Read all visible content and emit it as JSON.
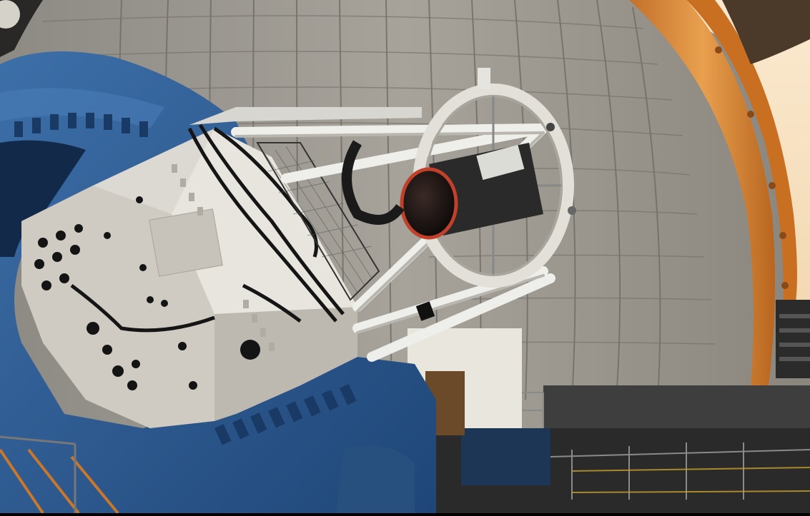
{
  "scene": {
    "subject": "telescope-in-observatory-dome",
    "colors": {
      "dome_panel": "#a09c94",
      "dome_shadow": "#7b7872",
      "dome_seam": "#6a675f",
      "yoke_blue": "#2f5f97",
      "yoke_blue_dark": "#1d3f6c",
      "yoke_blue_light": "#4a7bb5",
      "instrument_white": "#dcd9d2",
      "instrument_shade": "#b5b1a8",
      "truss_white": "#eeeeea",
      "slit_orange": "#d9852b",
      "slit_light": "#f6d6a8",
      "floor_dark": "#3a3a3a",
      "railing": "#6b6b6b",
      "orange_rail": "#c9772a"
    }
  }
}
